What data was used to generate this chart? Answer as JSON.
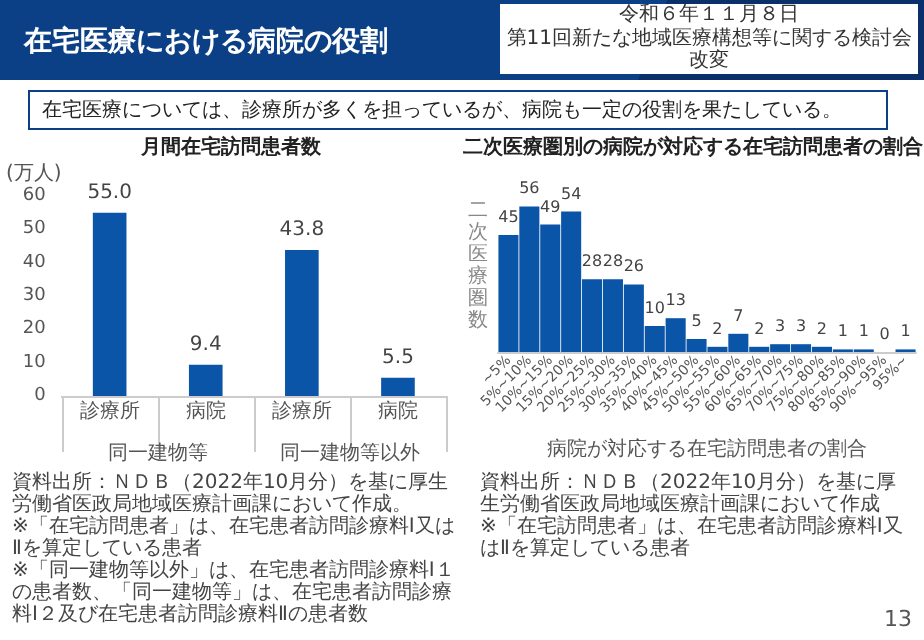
{
  "chart_data": [
    {
      "type": "other",
      "title": "在宅医療における病院の役割",
      "annotations": [
        "令和６年１１月８日",
        "第11回新たな地域医療構想等に関する検討会",
        "改変",
        "在宅医療については、診療所が多くを担っているが、病院も一定の役割を果たしている。",
        "13"
      ]
    },
    {
      "type": "bar",
      "title": "月間在宅訪問患者数",
      "ylabel": "(万人)",
      "categories": [
        "診療所",
        "病院",
        "診療所",
        "病院"
      ],
      "values": [
        55.0,
        9.4,
        43.8,
        5.5
      ],
      "value_labels": [
        "55.0",
        "9.4",
        "43.8",
        "5.5"
      ],
      "color": "#0a55a8",
      "ylim": [
        0,
        60
      ],
      "yticks": [
        0,
        10,
        20,
        30,
        40,
        50,
        60
      ],
      "annotations": [
        "同一建物等",
        "同一建物等以外",
        "資料出所：ＮＤＢ（2022年10月分）を基に厚生労働省医政局地域医療計画課において作成。",
        "※「在宅訪問患者」は、在宅患者訪問診療料Ⅰ又はⅡを算定している患者",
        "※「同一建物等以外」は、在宅患者訪問診療料Ⅰ１の患者数、「同一建物等」は、在宅患者訪問診療料Ⅰ２及び在宅患者訪問診療料Ⅱの患者数"
      ]
    },
    {
      "type": "bar",
      "title": "二次医療圏別の病院が対応する在宅訪問患者の割合",
      "xlabel": "病院が対応する在宅訪問患者の割合",
      "ylabel": "二次医療圏数",
      "categories": [
        "~5%",
        "5%~10%",
        "10%~15%",
        "15%~20%",
        "20%~25%",
        "25%~30%",
        "30%~35%",
        "35%~40%",
        "40%~45%",
        "45%~50%",
        "50%~55%",
        "55%~60%",
        "60%~65%",
        "65%~70%",
        "70%~75%",
        "75%~80%",
        "80%~85%",
        "85%~90%",
        "90%~95%",
        "95%~"
      ],
      "values": [
        45,
        56,
        49,
        54,
        28,
        28,
        26,
        10,
        13,
        5,
        2,
        7,
        2,
        3,
        3,
        2,
        1,
        1,
        0,
        1
      ],
      "color": "#0a55a8",
      "data_labels": true,
      "tick_labels": "x",
      "annotations": [
        "資料出所：ＮＤＢ（2022年10月分）を基に厚生労働省医政局地域医療計画課において作成",
        "※「在宅訪問患者」は、在宅患者訪問診療料Ⅰ又はⅡを算定している患者"
      ]
    }
  ]
}
